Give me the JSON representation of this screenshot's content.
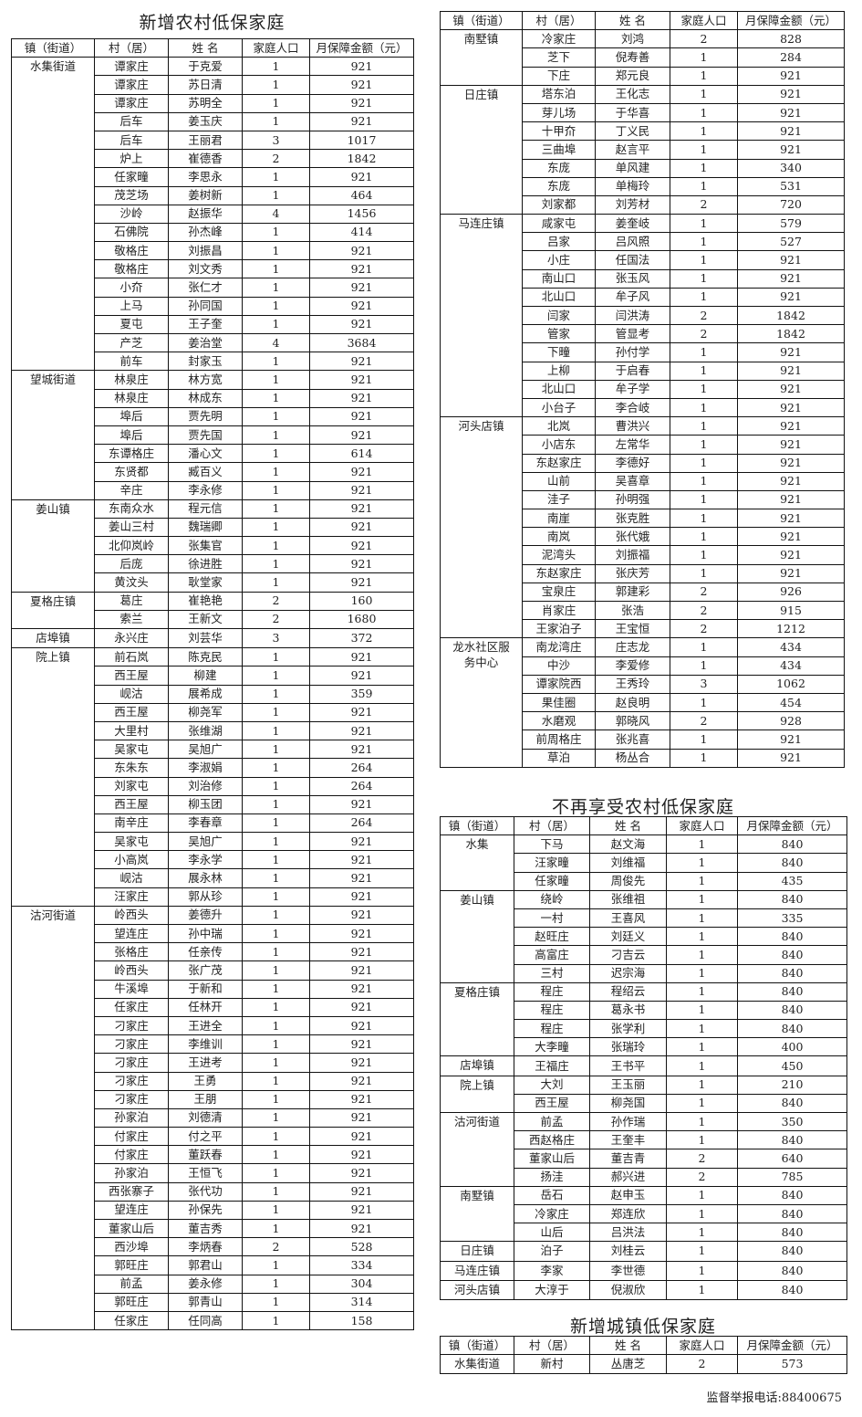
{
  "headers": [
    "镇（街道）",
    "村（居）",
    "姓  名",
    "家庭人口",
    "月保障金额（元）"
  ],
  "rural_new": {
    "title": "新增农村低保家庭",
    "groups": [
      {
        "town": "水集街道",
        "rows": [
          [
            "谭家庄",
            "于克爱",
            "1",
            "921"
          ],
          [
            "谭家庄",
            "苏日清",
            "1",
            "921"
          ],
          [
            "谭家庄",
            "苏明全",
            "1",
            "921"
          ],
          [
            "后车",
            "姜玉庆",
            "1",
            "921"
          ],
          [
            "后车",
            "王丽君",
            "3",
            "1017"
          ],
          [
            "炉上",
            "崔德香",
            "2",
            "1842"
          ],
          [
            "任家疃",
            "李思永",
            "1",
            "921"
          ],
          [
            "茂芝场",
            "姜树新",
            "1",
            "464"
          ],
          [
            "沙岭",
            "赵振华",
            "4",
            "1456"
          ],
          [
            "石佛院",
            "孙杰峰",
            "1",
            "414"
          ],
          [
            "敬格庄",
            "刘振昌",
            "1",
            "921"
          ],
          [
            "敬格庄",
            "刘文秀",
            "1",
            "921"
          ],
          [
            "小夼",
            "张仁才",
            "1",
            "921"
          ],
          [
            "上马",
            "孙同国",
            "1",
            "921"
          ],
          [
            "夏屯",
            "王子奎",
            "1",
            "921"
          ],
          [
            "产芝",
            "姜治堂",
            "4",
            "3684"
          ],
          [
            "前车",
            "封家玉",
            "1",
            "921"
          ]
        ]
      },
      {
        "town": "望城街道",
        "rows": [
          [
            "林泉庄",
            "林方宽",
            "1",
            "921"
          ],
          [
            "林泉庄",
            "林成东",
            "1",
            "921"
          ],
          [
            "埠后",
            "贾先明",
            "1",
            "921"
          ],
          [
            "埠后",
            "贾先国",
            "1",
            "921"
          ],
          [
            "东谭格庄",
            "潘心文",
            "1",
            "614"
          ],
          [
            "东贤都",
            "臧百义",
            "1",
            "921"
          ],
          [
            "辛庄",
            "李永修",
            "1",
            "921"
          ]
        ]
      },
      {
        "town": "姜山镇",
        "rows": [
          [
            "东南众水",
            "程元信",
            "1",
            "921"
          ],
          [
            "姜山三村",
            "魏瑞卿",
            "1",
            "921"
          ],
          [
            "北仰岚岭",
            "张集官",
            "1",
            "921"
          ],
          [
            "后庞",
            "徐进胜",
            "1",
            "921"
          ],
          [
            "黄汶头",
            "耿堂家",
            "1",
            "921"
          ]
        ]
      },
      {
        "town": "夏格庄镇",
        "rows": [
          [
            "葛庄",
            "崔艳艳",
            "2",
            "160"
          ],
          [
            "索兰",
            "王新文",
            "2",
            "1680"
          ]
        ]
      },
      {
        "town": "店埠镇",
        "rows": [
          [
            "永兴庄",
            "刘芸华",
            "3",
            "372"
          ]
        ]
      },
      {
        "town": "院上镇",
        "rows": [
          [
            "前石岚",
            "陈克民",
            "1",
            "921"
          ],
          [
            "西王屋",
            "柳建",
            "1",
            "921"
          ],
          [
            "岘沽",
            "展希成",
            "1",
            "359"
          ],
          [
            "西王屋",
            "柳尧军",
            "1",
            "921"
          ],
          [
            "大里村",
            "张维湖",
            "1",
            "921"
          ],
          [
            "吴家屯",
            "吴旭广",
            "1",
            "921"
          ],
          [
            "东朱东",
            "李淑娟",
            "1",
            "264"
          ],
          [
            "刘家屯",
            "刘治修",
            "1",
            "264"
          ],
          [
            "西王屋",
            "柳玉团",
            "1",
            "921"
          ],
          [
            "南辛庄",
            "李春章",
            "1",
            "264"
          ],
          [
            "吴家屯",
            "吴旭广",
            "1",
            "921"
          ],
          [
            "小高岚",
            "李永学",
            "1",
            "921"
          ],
          [
            "岘沽",
            "展永林",
            "1",
            "921"
          ],
          [
            "汪家庄",
            "郭从珍",
            "1",
            "921"
          ]
        ]
      },
      {
        "town": "沽河街道",
        "rows": [
          [
            "岭西头",
            "姜德升",
            "1",
            "921"
          ],
          [
            "望连庄",
            "孙中瑞",
            "1",
            "921"
          ],
          [
            "张格庄",
            "任亲传",
            "1",
            "921"
          ],
          [
            "岭西头",
            "张广茂",
            "1",
            "921"
          ],
          [
            "牛溪埠",
            "于新和",
            "1",
            "921"
          ],
          [
            "任家庄",
            "任林开",
            "1",
            "921"
          ],
          [
            "刁家庄",
            "王进全",
            "1",
            "921"
          ],
          [
            "刁家庄",
            "李维训",
            "1",
            "921"
          ],
          [
            "刁家庄",
            "王进考",
            "1",
            "921"
          ],
          [
            "刁家庄",
            "王勇",
            "1",
            "921"
          ],
          [
            "刁家庄",
            "王朋",
            "1",
            "921"
          ],
          [
            "孙家泊",
            "刘德清",
            "1",
            "921"
          ],
          [
            "付家庄",
            "付之平",
            "1",
            "921"
          ],
          [
            "付家庄",
            "董跃春",
            "1",
            "921"
          ],
          [
            "孙家泊",
            "王恒飞",
            "1",
            "921"
          ],
          [
            "西张寨子",
            "张代功",
            "1",
            "921"
          ],
          [
            "望连庄",
            "孙保先",
            "1",
            "921"
          ],
          [
            "董家山后",
            "董吉秀",
            "1",
            "921"
          ],
          [
            "西沙埠",
            "李炳春",
            "2",
            "528"
          ],
          [
            "郭旺庄",
            "郭君山",
            "1",
            "334"
          ],
          [
            "前孟",
            "姜永修",
            "1",
            "304"
          ],
          [
            "郭旺庄",
            "郭青山",
            "1",
            "314"
          ],
          [
            "任家庄",
            "任同高",
            "1",
            "158"
          ]
        ]
      }
    ]
  },
  "rural_new_cont": {
    "groups": [
      {
        "town": "南墅镇",
        "rows": [
          [
            "冷家庄",
            "刘鸿",
            "2",
            "828"
          ],
          [
            "芝下",
            "倪寿善",
            "1",
            "284"
          ],
          [
            "下庄",
            "郑元良",
            "1",
            "921"
          ]
        ]
      },
      {
        "town": "日庄镇",
        "rows": [
          [
            "塔东泊",
            "王化志",
            "1",
            "921"
          ],
          [
            "芽儿场",
            "于华喜",
            "1",
            "921"
          ],
          [
            "十甲夼",
            "丁义民",
            "1",
            "921"
          ],
          [
            "三曲埠",
            "赵言平",
            "1",
            "921"
          ],
          [
            "东庞",
            "单风建",
            "1",
            "340"
          ],
          [
            "东庞",
            "单梅玲",
            "1",
            "531"
          ],
          [
            "刘家都",
            "刘芳材",
            "2",
            "720"
          ]
        ]
      },
      {
        "town": "马连庄镇",
        "rows": [
          [
            "咸家屯",
            "姜奎岐",
            "1",
            "579"
          ],
          [
            "吕家",
            "吕风照",
            "1",
            "527"
          ],
          [
            "小庄",
            "任国法",
            "1",
            "921"
          ],
          [
            "南山口",
            "张玉风",
            "1",
            "921"
          ],
          [
            "北山口",
            "牟子风",
            "1",
            "921"
          ],
          [
            "闫家",
            "闫洪涛",
            "2",
            "1842"
          ],
          [
            "管家",
            "管显考",
            "2",
            "1842"
          ],
          [
            "下疃",
            "孙付学",
            "1",
            "921"
          ],
          [
            "上柳",
            "于启春",
            "1",
            "921"
          ],
          [
            "北山口",
            "牟子学",
            "1",
            "921"
          ],
          [
            "小台子",
            "李合岐",
            "1",
            "921"
          ]
        ]
      },
      {
        "town": "河头店镇",
        "rows": [
          [
            "北岚",
            "曹洪兴",
            "1",
            "921"
          ],
          [
            "小店东",
            "左常华",
            "1",
            "921"
          ],
          [
            "东赵家庄",
            "李德好",
            "1",
            "921"
          ],
          [
            "山前",
            "吴喜章",
            "1",
            "921"
          ],
          [
            "洼子",
            "孙明强",
            "1",
            "921"
          ],
          [
            "南崖",
            "张克胜",
            "1",
            "921"
          ],
          [
            "南岚",
            "张代娥",
            "1",
            "921"
          ],
          [
            "泥湾头",
            "刘振福",
            "1",
            "921"
          ],
          [
            "东赵家庄",
            "张庆芳",
            "1",
            "921"
          ],
          [
            "宝泉庄",
            "郭建彩",
            "2",
            "926"
          ],
          [
            "肖家庄",
            "张浩",
            "2",
            "915"
          ],
          [
            "王家泊子",
            "王宝恒",
            "2",
            "1212"
          ]
        ]
      },
      {
        "town": "龙水社区服务中心",
        "rows": [
          [
            "南龙湾庄",
            "庄志龙",
            "1",
            "434"
          ],
          [
            "中沙",
            "李爱修",
            "1",
            "434"
          ],
          [
            "谭家院西",
            "王秀玲",
            "3",
            "1062"
          ],
          [
            "果佳圈",
            "赵良明",
            "1",
            "454"
          ],
          [
            "水磨观",
            "郭晓风",
            "2",
            "928"
          ],
          [
            "前周格庄",
            "张兆喜",
            "1",
            "921"
          ],
          [
            "草泊",
            "杨丛合",
            "1",
            "921"
          ]
        ]
      }
    ]
  },
  "rural_removed": {
    "title": "不再享受农村低保家庭",
    "groups": [
      {
        "town": "水集",
        "rows": [
          [
            "下马",
            "赵文海",
            "1",
            "840"
          ],
          [
            "汪家疃",
            "刘维福",
            "1",
            "840"
          ],
          [
            "任家疃",
            "周俊先",
            "1",
            "435"
          ]
        ]
      },
      {
        "town": "姜山镇",
        "rows": [
          [
            "绕岭",
            "张维祖",
            "1",
            "840"
          ],
          [
            "一村",
            "王喜风",
            "1",
            "335"
          ],
          [
            "赵旺庄",
            "刘廷义",
            "1",
            "840"
          ],
          [
            "高富庄",
            "刁吉云",
            "1",
            "840"
          ],
          [
            "三村",
            "迟宗海",
            "1",
            "840"
          ]
        ]
      },
      {
        "town": "夏格庄镇",
        "rows": [
          [
            "程庄",
            "程绍云",
            "1",
            "840"
          ],
          [
            "程庄",
            "葛永书",
            "1",
            "840"
          ],
          [
            "程庄",
            "张学利",
            "1",
            "840"
          ],
          [
            "大李疃",
            "张瑞玲",
            "1",
            "400"
          ]
        ]
      },
      {
        "town": "店埠镇",
        "rows": [
          [
            "王福庄",
            "王书平",
            "1",
            "450"
          ]
        ]
      },
      {
        "town": "院上镇",
        "rows": [
          [
            "大刘",
            "王玉丽",
            "1",
            "210"
          ],
          [
            "西王屋",
            "柳尧国",
            "1",
            "840"
          ]
        ]
      },
      {
        "town": "沽河街道",
        "rows": [
          [
            "前孟",
            "孙作瑞",
            "1",
            "350"
          ],
          [
            "西赵格庄",
            "王奎丰",
            "1",
            "840"
          ],
          [
            "董家山后",
            "董吉青",
            "2",
            "640"
          ],
          [
            "扬洼",
            "郝兴进",
            "2",
            "785"
          ]
        ]
      },
      {
        "town": "南墅镇",
        "rows": [
          [
            "岳石",
            "赵申玉",
            "1",
            "840"
          ],
          [
            "冷家庄",
            "郑连欣",
            "1",
            "840"
          ],
          [
            "山后",
            "吕洪法",
            "1",
            "840"
          ]
        ]
      },
      {
        "town": "日庄镇",
        "rows": [
          [
            "泊子",
            "刘桂云",
            "1",
            "840"
          ]
        ]
      },
      {
        "town": "马连庄镇",
        "rows": [
          [
            "李家",
            "李世德",
            "1",
            "840"
          ]
        ]
      },
      {
        "town": "河头店镇",
        "rows": [
          [
            "大淳于",
            "倪淑欣",
            "1",
            "840"
          ]
        ]
      }
    ]
  },
  "urban_new": {
    "title": "新增城镇低保家庭",
    "groups": [
      {
        "town": "水集街道",
        "rows": [
          [
            "新村",
            "丛唐芝",
            "2",
            "573"
          ]
        ]
      }
    ]
  },
  "footer": "监督举报电话:88400675"
}
